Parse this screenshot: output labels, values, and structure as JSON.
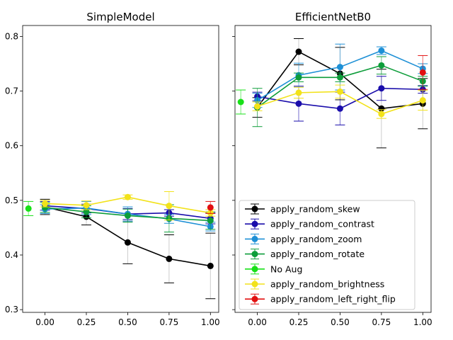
{
  "chart_data": [
    {
      "type": "line",
      "title": "SimpleModel",
      "xlabel": "",
      "ylabel": "",
      "xlim": [
        -0.135,
        1.05
      ],
      "ylim": [
        0.295,
        0.82
      ],
      "xticks": [
        "0.00",
        "0.25",
        "0.50",
        "0.75",
        "1.00"
      ],
      "yticks": [
        "0.3",
        "0.4",
        "0.5",
        "0.6",
        "0.7",
        "0.8"
      ],
      "series": [
        {
          "name": "apply_random_skew",
          "color": "#000000",
          "x": [
            0,
            0.25,
            0.5,
            0.75,
            1.0
          ],
          "y": [
            0.488,
            0.47,
            0.423,
            0.393,
            0.38
          ],
          "err": [
            0.014,
            0.015,
            0.039,
            0.044,
            0.06
          ]
        },
        {
          "name": "apply_random_contrast",
          "color": "#1a0dab",
          "x": [
            0,
            0.25,
            0.5,
            0.75,
            1.0
          ],
          "y": [
            0.49,
            0.485,
            0.475,
            0.477,
            0.467
          ],
          "err": [
            0.008,
            0.008,
            0.01,
            0.006,
            0.01
          ]
        },
        {
          "name": "apply_random_zoom",
          "color": "#1e90d6",
          "x": [
            0,
            0.25,
            0.5,
            0.75,
            1.0
          ],
          "y": [
            0.484,
            0.486,
            0.475,
            0.466,
            0.452
          ],
          "err": [
            0.008,
            0.012,
            0.013,
            0.008,
            0.008
          ]
        },
        {
          "name": "apply_random_rotate",
          "color": "#0d9d3a",
          "x": [
            0,
            0.25,
            0.5,
            0.75,
            1.0
          ],
          "y": [
            0.487,
            0.479,
            0.472,
            0.467,
            0.463
          ],
          "err": [
            0.009,
            0.011,
            0.012,
            0.025,
            0.016
          ]
        },
        {
          "name": "No Aug",
          "color": "#18e018",
          "x": [
            -0.1
          ],
          "y": [
            0.485
          ],
          "err": [
            0.013
          ]
        },
        {
          "name": "apply_random_brightness",
          "color": "#f2e21a",
          "x": [
            0,
            0.25,
            0.5,
            0.75,
            1.0
          ],
          "y": [
            0.494,
            0.491,
            0.506,
            0.49,
            0.477
          ],
          "err": [
            0.006,
            0.008,
            0.004,
            0.026,
            0.006
          ]
        },
        {
          "name": "apply_random_left_right_flip",
          "color": "#e21010",
          "x": [
            1.0
          ],
          "y": [
            0.487
          ],
          "err": [
            0.011
          ]
        }
      ]
    },
    {
      "type": "line",
      "title": "EfficientNetB0",
      "xlabel": "",
      "ylabel": "",
      "xlim": [
        -0.135,
        1.05
      ],
      "ylim": [
        0.295,
        0.82
      ],
      "xticks": [
        "0.00",
        "0.25",
        "0.50",
        "0.75",
        "1.00"
      ],
      "yticks": [
        "0.3",
        "0.4",
        "0.5",
        "0.6",
        "0.7",
        "0.8"
      ],
      "legend": "lower-right",
      "series": [
        {
          "name": "apply_random_skew",
          "color": "#000000",
          "x": [
            0,
            0.25,
            0.5,
            0.75,
            1.0
          ],
          "y": [
            0.67,
            0.772,
            0.732,
            0.668,
            0.677
          ],
          "err": [
            0.018,
            0.024,
            0.048,
            0.072,
            0.046
          ]
        },
        {
          "name": "apply_random_contrast",
          "color": "#1a0dab",
          "x": [
            0,
            0.25,
            0.5,
            0.75,
            1.0
          ],
          "y": [
            0.69,
            0.677,
            0.668,
            0.705,
            0.703
          ],
          "err": [
            0.008,
            0.032,
            0.03,
            0.022,
            0.007
          ]
        },
        {
          "name": "apply_random_zoom",
          "color": "#1e90d6",
          "x": [
            0,
            0.25,
            0.5,
            0.75,
            1.0
          ],
          "y": [
            0.683,
            0.729,
            0.744,
            0.774,
            0.741
          ],
          "err": [
            0.013,
            0.022,
            0.042,
            0.007,
            0.009
          ]
        },
        {
          "name": "apply_random_rotate",
          "color": "#0d9d3a",
          "x": [
            0,
            0.25,
            0.5,
            0.75,
            1.0
          ],
          "y": [
            0.67,
            0.725,
            0.725,
            0.747,
            0.718
          ],
          "err": [
            0.035,
            0.008,
            0.008,
            0.016,
            0.009
          ]
        },
        {
          "name": "No Aug",
          "color": "#18e018",
          "x": [
            -0.1
          ],
          "y": [
            0.68
          ],
          "err": [
            0.022
          ]
        },
        {
          "name": "apply_random_brightness",
          "color": "#f2e21a",
          "x": [
            0,
            0.25,
            0.5,
            0.75,
            1.0
          ],
          "y": [
            0.672,
            0.697,
            0.699,
            0.658,
            0.683
          ],
          "err": [
            0.008,
            0.01,
            0.012,
            0.008,
            0.018
          ]
        },
        {
          "name": "apply_random_left_right_flip",
          "color": "#e21010",
          "x": [
            1.0
          ],
          "y": [
            0.734
          ],
          "err": [
            0.031
          ]
        }
      ]
    }
  ]
}
